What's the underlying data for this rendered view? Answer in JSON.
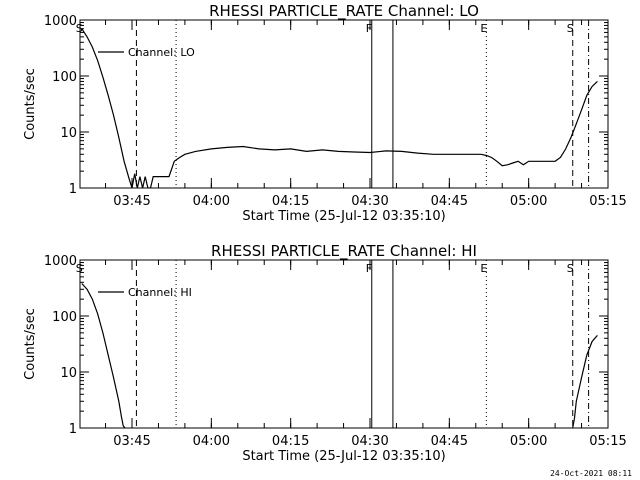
{
  "timestamp": "24-Oct-2021 08:11",
  "chart_data": [
    {
      "type": "line",
      "title": "RHESSI PARTICLE_RATE Channel: LO",
      "xlabel": "Start Time (25-Jul-12 03:35:10)",
      "ylabel": "Counts/sec",
      "yscale": "log",
      "ylim": [
        1,
        1000
      ],
      "xlim": [
        "03:35:10",
        "05:15:00"
      ],
      "x_ticks": [
        "03:45",
        "04:00",
        "04:15",
        "04:30",
        "04:45",
        "05:00",
        "05:15"
      ],
      "y_ticks": [
        "1",
        "10",
        "100",
        "1000"
      ],
      "legend": {
        "position": "top-left",
        "entries": [
          "Channel: LO"
        ]
      },
      "series": [
        {
          "name": "Channel: LO",
          "x": [
            "03:35:30",
            "03:36:30",
            "03:37:30",
            "03:38:30",
            "03:39:30",
            "03:40:30",
            "03:41:30",
            "03:42:30",
            "03:43:30",
            "03:44:30",
            "03:45:00",
            "03:45:30",
            "03:46:00",
            "03:46:30",
            "03:47:00",
            "03:47:30",
            "03:48:00",
            "03:48:30",
            "03:49:00",
            "03:49:30",
            "03:50:00",
            "03:51:00",
            "03:52:00",
            "03:53:00",
            "03:54:00",
            "03:55:00",
            "03:57:00",
            "04:00:00",
            "04:03:00",
            "04:06:00",
            "04:09:00",
            "04:12:00",
            "04:15:00",
            "04:18:00",
            "04:21:00",
            "04:24:00",
            "04:27:00",
            "04:30:00",
            "04:33:00",
            "04:36:00",
            "04:39:00",
            "04:42:00",
            "04:45:00",
            "04:48:00",
            "04:51:00",
            "04:52:00",
            "04:53:00",
            "04:54:00",
            "04:55:00",
            "04:56:00",
            "04:57:00",
            "04:58:00",
            "04:59:00",
            "05:00:00",
            "05:01:00",
            "05:02:00",
            "05:03:00",
            "05:04:00",
            "05:05:00",
            "05:06:00",
            "05:07:00",
            "05:08:00",
            "05:09:00",
            "05:10:00",
            "05:11:00",
            "05:12:00",
            "05:13:00"
          ],
          "y": [
            700,
            500,
            330,
            190,
            95,
            45,
            20,
            8,
            3,
            1.4,
            1,
            1.8,
            1,
            1.6,
            1,
            1.6,
            1,
            1,
            1.6,
            1.6,
            1.6,
            1.6,
            1.6,
            3,
            3.5,
            4,
            4.5,
            5,
            5.3,
            5.5,
            5,
            4.8,
            5,
            4.5,
            4.8,
            4.5,
            4.4,
            4.3,
            4.6,
            4.5,
            4.2,
            4,
            4,
            4,
            4,
            3.8,
            3.5,
            3,
            2.5,
            2.6,
            2.8,
            3,
            2.6,
            3,
            3,
            3,
            3,
            3,
            3,
            3.5,
            5,
            8,
            14,
            25,
            45,
            65,
            80
          ]
        }
      ],
      "annotations": [
        {
          "label": "S",
          "time": "03:35:30",
          "style": "text"
        },
        {
          "label": "",
          "time": "03:45:50",
          "style": "dashed"
        },
        {
          "label": "",
          "time": "03:53:20",
          "style": "dotted"
        },
        {
          "label": "F",
          "time": "04:30:20",
          "style": "solid"
        },
        {
          "label": "",
          "time": "04:34:20",
          "style": "solid"
        },
        {
          "label": "E",
          "time": "04:52:00",
          "style": "dotted"
        },
        {
          "label": "S",
          "time": "05:08:20",
          "style": "dashed"
        },
        {
          "label": "",
          "time": "05:11:20",
          "style": "dash-dot"
        }
      ]
    },
    {
      "type": "line",
      "title": "RHESSI PARTICLE_RATE Channel: HI",
      "xlabel": "Start Time (25-Jul-12 03:35:10)",
      "ylabel": "Counts/sec",
      "yscale": "log",
      "ylim": [
        1,
        1000
      ],
      "xlim": [
        "03:35:10",
        "05:15:00"
      ],
      "x_ticks": [
        "03:45",
        "04:00",
        "04:15",
        "04:30",
        "04:45",
        "05:00",
        "05:15"
      ],
      "y_ticks": [
        "1",
        "10",
        "100",
        "1000"
      ],
      "legend": {
        "position": "top-left",
        "entries": [
          "Channel: HI"
        ]
      },
      "series": [
        {
          "name": "Channel: HI",
          "x": [
            "03:35:30",
            "03:36:30",
            "03:37:30",
            "03:38:30",
            "03:39:30",
            "03:40:30",
            "03:41:30",
            "03:42:30",
            "03:43:00",
            "03:43:20",
            "03:43:40",
            "05:08:20",
            "05:08:40",
            "05:09:00",
            "05:10:00",
            "05:11:00",
            "05:12:00",
            "05:13:00"
          ],
          "y": [
            380,
            300,
            200,
            110,
            50,
            20,
            8,
            3,
            1.6,
            1.1,
            1,
            1,
            1.5,
            3,
            8,
            20,
            35,
            45
          ]
        }
      ],
      "annotations": [
        {
          "label": "S",
          "time": "03:35:30",
          "style": "text"
        },
        {
          "label": "",
          "time": "03:45:50",
          "style": "dashed"
        },
        {
          "label": "",
          "time": "03:53:20",
          "style": "dotted"
        },
        {
          "label": "F",
          "time": "04:30:20",
          "style": "solid"
        },
        {
          "label": "",
          "time": "04:34:20",
          "style": "solid"
        },
        {
          "label": "E",
          "time": "04:52:00",
          "style": "dotted"
        },
        {
          "label": "S",
          "time": "05:08:20",
          "style": "dashed"
        },
        {
          "label": "",
          "time": "05:11:20",
          "style": "dash-dot"
        }
      ]
    }
  ]
}
